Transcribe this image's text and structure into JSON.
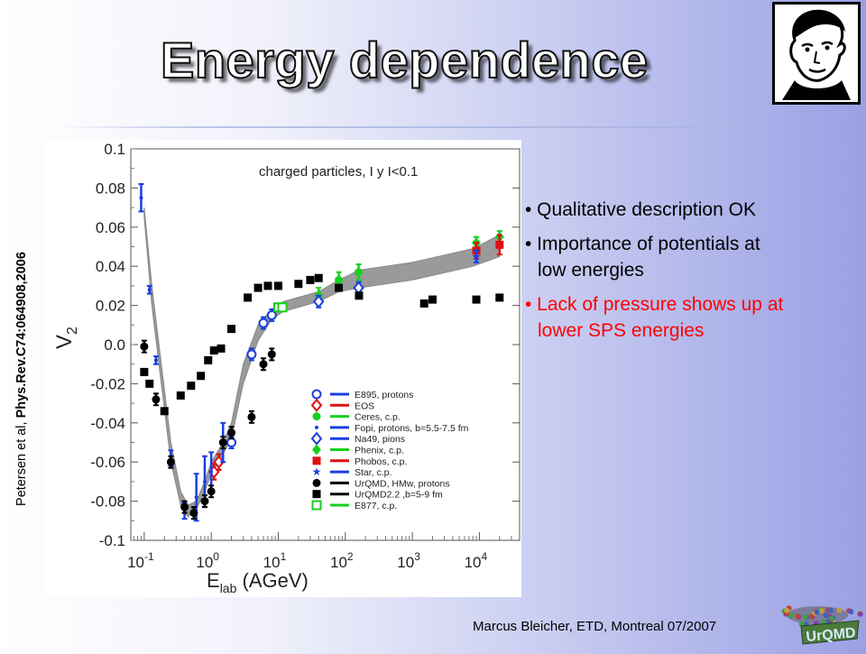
{
  "slide": {
    "title": "Energy dependence",
    "citation_prefix": "Petersen et al, ",
    "citation_ref": "Phys.Rev.C74:064908,2006",
    "footer": "Marcus Bleicher, ETD, Montreal 07/2007",
    "logo_label": "UrQMD",
    "colors": {
      "highlight": "#ff0000",
      "text": "#000000"
    }
  },
  "bullets": [
    {
      "line1": "• Qualitative description OK",
      "line2": "",
      "color": "#000000"
    },
    {
      "line1": "• Importance of potentials at",
      "line2": "low energies",
      "color": "#000000"
    },
    {
      "line1": "• Lack of pressure shows up at",
      "line2": "lower SPS energies",
      "color": "#ff0000"
    }
  ],
  "chart_data": {
    "type": "scatter",
    "annotation": "charged particles, I y I<0.1",
    "ylabel": "V",
    "ylabel_sub": "2",
    "xlabel": "E",
    "xlabel_sub": "lab",
    "xlabel_unit": " (AGeV)",
    "x_log": true,
    "xlim_log10": [
      -1.2,
      4.6
    ],
    "ylim": [
      -0.1,
      0.1
    ],
    "yticks": [
      {
        "value": 0.1,
        "label": "0.1"
      },
      {
        "value": 0.08,
        "label": "0.08"
      },
      {
        "value": 0.06,
        "label": "0.06"
      },
      {
        "value": 0.04,
        "label": "0.04"
      },
      {
        "value": 0.02,
        "label": "0.02"
      },
      {
        "value": 0.0,
        "label": "0.0"
      },
      {
        "value": -0.02,
        "label": "-0.02"
      },
      {
        "value": -0.04,
        "label": "-0.04"
      },
      {
        "value": -0.06,
        "label": "-0.06"
      },
      {
        "value": -0.08,
        "label": "-0.08"
      },
      {
        "value": -0.1,
        "label": "-0.1"
      }
    ],
    "xticks": [
      {
        "exp": -1,
        "base": "10",
        "sup": "-1"
      },
      {
        "exp": 0,
        "base": "10",
        "sup": "0"
      },
      {
        "exp": 1,
        "base": "10",
        "sup": "1"
      },
      {
        "exp": 2,
        "base": "10",
        "sup": "2"
      },
      {
        "exp": 3,
        "base": "10",
        "sup": "3"
      },
      {
        "exp": 4,
        "base": "10",
        "sup": "4"
      }
    ],
    "band_upper": [
      [
        0.1,
        0.07
      ],
      [
        0.13,
        0.03
      ],
      [
        0.18,
        -0.01
      ],
      [
        0.25,
        -0.05
      ],
      [
        0.35,
        -0.075
      ],
      [
        0.45,
        -0.082
      ],
      [
        0.6,
        -0.08
      ],
      [
        0.8,
        -0.07
      ],
      [
        1.0,
        -0.06
      ],
      [
        1.5,
        -0.05
      ],
      [
        2.0,
        -0.04
      ],
      [
        3.0,
        -0.01
      ],
      [
        5.0,
        0.01
      ],
      [
        8.0,
        0.018
      ],
      [
        12.0,
        0.022
      ],
      [
        40.0,
        0.027
      ],
      [
        80.0,
        0.033
      ],
      [
        160.0,
        0.038
      ],
      [
        1000.0,
        0.042
      ],
      [
        8000.0,
        0.049
      ],
      [
        20000.0,
        0.056
      ]
    ],
    "band_lower": [
      [
        20000.0,
        0.045
      ],
      [
        8000.0,
        0.04
      ],
      [
        1000.0,
        0.033
      ],
      [
        160.0,
        0.029
      ],
      [
        80.0,
        0.027
      ],
      [
        40.0,
        0.022
      ],
      [
        12.0,
        0.017
      ],
      [
        8.0,
        0.013
      ],
      [
        5.0,
        0.002
      ],
      [
        3.0,
        -0.02
      ],
      [
        2.0,
        -0.048
      ],
      [
        1.5,
        -0.056
      ],
      [
        1.0,
        -0.066
      ],
      [
        0.8,
        -0.075
      ],
      [
        0.6,
        -0.084
      ],
      [
        0.45,
        -0.088
      ],
      [
        0.35,
        -0.082
      ],
      [
        0.25,
        -0.06
      ],
      [
        0.18,
        -0.02
      ],
      [
        0.13,
        0.02
      ],
      [
        0.1,
        0.065
      ]
    ],
    "series": [
      {
        "name": "E895, protons",
        "color": "#1a3fe0",
        "marker": "circle-open",
        "points": [
          [
            2.0,
            -0.05
          ],
          [
            4.0,
            -0.005
          ],
          [
            6.0,
            0.011
          ],
          [
            8.0,
            0.015
          ]
        ],
        "errors": [
          0.003,
          0.003,
          0.003,
          0.003
        ]
      },
      {
        "name": "EOS",
        "color": "#e01010",
        "marker": "diamond-open",
        "points": [
          [
            1.1,
            -0.065
          ],
          [
            1.3,
            -0.06
          ]
        ],
        "errors": [
          0.004,
          0.004
        ]
      },
      {
        "name": "Ceres, c.p.",
        "color": "#16d020",
        "marker": "circle",
        "points": [
          [
            40.0,
            0.025
          ],
          [
            80.0,
            0.033
          ],
          [
            158.0,
            0.037
          ]
        ],
        "errors": [
          0.004,
          0.004,
          0.004
        ]
      },
      {
        "name": "Fopi, protons, b=5.5-7.5 fm",
        "color": "#1a3fe0",
        "marker": "dot",
        "points": [
          [
            0.09,
            0.075
          ],
          [
            0.12,
            0.028
          ],
          [
            0.15,
            -0.008
          ],
          [
            0.25,
            -0.058
          ],
          [
            0.4,
            -0.085
          ],
          [
            0.6,
            -0.078
          ],
          [
            0.8,
            -0.07
          ],
          [
            1.0,
            -0.065
          ],
          [
            1.5,
            -0.05
          ]
        ],
        "errors": [
          0.007,
          0.002,
          0.002,
          0.004,
          0.004,
          0.012,
          0.013,
          0.01,
          0.01
        ]
      },
      {
        "name": "Na49, pions",
        "color": "#1a3fe0",
        "marker": "diamond-open",
        "points": [
          [
            40.0,
            0.022
          ],
          [
            158.0,
            0.029
          ]
        ],
        "errors": [
          0.003,
          0.003
        ]
      },
      {
        "name": "Phenix, c.p.",
        "color": "#16d020",
        "marker": "diamond",
        "points": [
          [
            9000.0,
            0.052
          ],
          [
            20000.0,
            0.055
          ]
        ],
        "errors": [
          0.003,
          0.003
        ]
      },
      {
        "name": "Phobos, c.p.",
        "color": "#e01010",
        "marker": "square",
        "points": [
          [
            9000.0,
            0.048
          ],
          [
            20000.0,
            0.051
          ]
        ],
        "errors": [
          0.004,
          0.005
        ]
      },
      {
        "name": "Star, c.p.",
        "color": "#1a3fe0",
        "marker": "star",
        "points": [
          [
            9000.0,
            0.045
          ]
        ],
        "errors": [
          0.003
        ]
      },
      {
        "name": "UrQMD, HMw, protons",
        "color": "#000000",
        "marker": "circle",
        "points": [
          [
            0.1,
            -0.001
          ],
          [
            0.15,
            -0.028
          ],
          [
            0.25,
            -0.06
          ],
          [
            0.4,
            -0.083
          ],
          [
            0.55,
            -0.086
          ],
          [
            0.8,
            -0.08
          ],
          [
            1.0,
            -0.075
          ],
          [
            1.5,
            -0.05
          ],
          [
            2.0,
            -0.045
          ],
          [
            4.0,
            -0.037
          ],
          [
            6.0,
            -0.01
          ],
          [
            8.0,
            -0.005
          ]
        ],
        "errors": [
          0.003,
          0.003,
          0.003,
          0.003,
          0.003,
          0.003,
          0.003,
          0.003,
          0.003,
          0.003,
          0.003,
          0.003
        ]
      },
      {
        "name": "UrQMD2.2 ,b=5-9 fm",
        "color": "#000000",
        "marker": "square",
        "points": [
          [
            0.1,
            -0.014
          ],
          [
            0.12,
            -0.02
          ],
          [
            0.2,
            -0.034
          ],
          [
            0.35,
            -0.026
          ],
          [
            0.5,
            -0.021
          ],
          [
            0.7,
            -0.016
          ],
          [
            0.9,
            -0.008
          ],
          [
            1.1,
            -0.003
          ],
          [
            1.4,
            -0.002
          ],
          [
            2.0,
            0.008
          ],
          [
            3.5,
            0.024
          ],
          [
            5.0,
            0.029
          ],
          [
            7.0,
            0.03
          ],
          [
            10.0,
            0.03
          ],
          [
            20.0,
            0.031
          ],
          [
            30.0,
            0.033
          ],
          [
            40.0,
            0.034
          ],
          [
            80.0,
            0.029
          ],
          [
            160.0,
            0.025
          ],
          [
            1500.0,
            0.021
          ],
          [
            2000.0,
            0.023
          ],
          [
            9000.0,
            0.023
          ],
          [
            20000.0,
            0.024
          ]
        ],
        "errors": []
      },
      {
        "name": "E877, c.p.",
        "color": "#16d020",
        "marker": "square-open",
        "points": [
          [
            10.0,
            0.019
          ],
          [
            11.5,
            0.019
          ]
        ],
        "errors": [
          0.002,
          0.002
        ]
      }
    ],
    "legend_placement": "bottom-right"
  }
}
